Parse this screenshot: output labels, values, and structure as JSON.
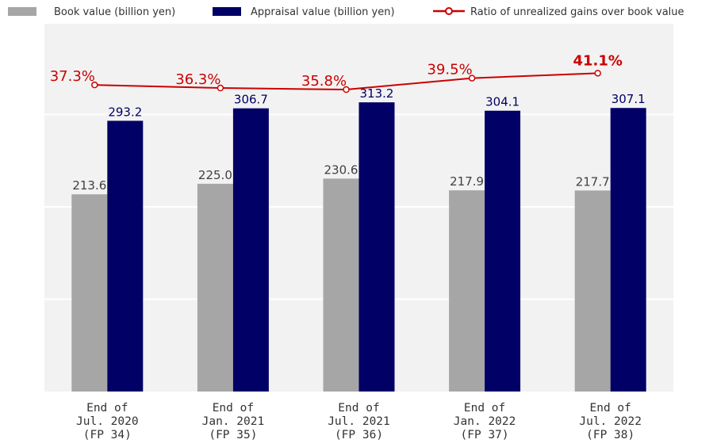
{
  "colors": {
    "book": "#a6a6a6",
    "appraisal": "#000066",
    "ratio": "#cc0000",
    "plot_bg": "#f2f2f2",
    "grid": "#ffffff"
  },
  "legend": {
    "book": "Book value (billion yen)",
    "appraisal": "Appraisal value (billion yen)",
    "ratio": "Ratio of unrealized gains over book value"
  },
  "chart_data": {
    "type": "bar",
    "categories": [
      [
        "End of",
        "Jul. 2020",
        "(FP 34)"
      ],
      [
        "End of",
        "Jan. 2021",
        "(FP 35)"
      ],
      [
        "End of",
        "Jul. 2021",
        "(FP 36)"
      ],
      [
        "End of",
        "Jan. 2022",
        "(FP 37)"
      ],
      [
        "End of",
        "Jul. 2022",
        "(FP 38)"
      ]
    ],
    "series": [
      {
        "name": "Book value (billion yen)",
        "type": "bar",
        "values": [
          213.6,
          225.0,
          230.6,
          217.9,
          217.7
        ],
        "labels": [
          "213.6",
          "225.0",
          "230.6",
          "217.9",
          "217.7"
        ]
      },
      {
        "name": "Appraisal value (billion yen)",
        "type": "bar",
        "values": [
          293.2,
          306.7,
          313.2,
          304.1,
          307.1
        ],
        "labels": [
          "293.2",
          "306.7",
          "313.2",
          "304.1",
          "307.1"
        ]
      },
      {
        "name": "Ratio of unrealized gains over book value",
        "type": "line",
        "values": [
          37.3,
          36.3,
          35.8,
          39.5,
          41.1
        ],
        "labels": [
          "37.3%",
          "36.3%",
          "35.8%",
          "39.5%",
          "41.1%"
        ],
        "highlight_last": true
      }
    ],
    "ylim": [
      0,
      400
    ],
    "grid": true,
    "legend_position": "top"
  }
}
